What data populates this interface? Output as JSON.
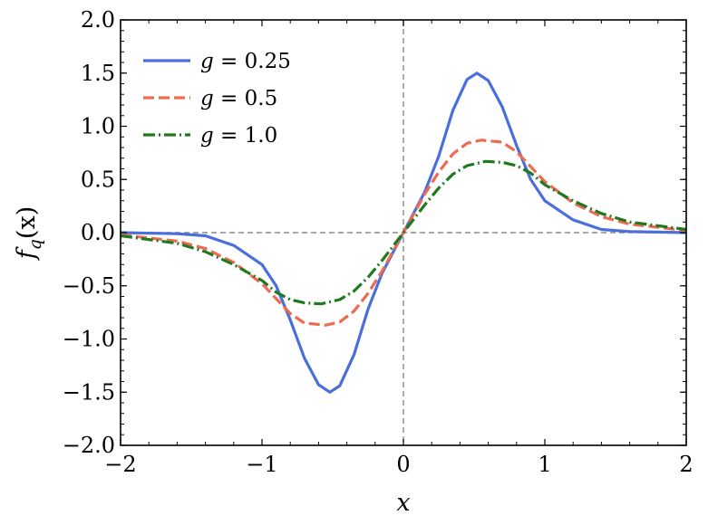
{
  "chart_data": {
    "type": "line",
    "title": "",
    "xlabel": "x",
    "ylabel": "f_q(x)",
    "ylabel_parts": {
      "base": "f",
      "sub": "q",
      "arg": "(x)"
    },
    "xlim": [
      -2,
      2
    ],
    "ylim": [
      -2,
      2
    ],
    "xticks": [
      -2,
      -1,
      0,
      1,
      2
    ],
    "xtick_labels": [
      "−2",
      "−1",
      "0",
      "1",
      "2"
    ],
    "yticks": [
      -2,
      -1.5,
      -1,
      -0.5,
      0,
      0.5,
      1,
      1.5,
      2
    ],
    "ytick_labels": [
      "−2.0",
      "−1.5",
      "−1.0",
      "−0.5",
      "0.0",
      "0.5",
      "1.0",
      "1.5",
      "2.0"
    ],
    "grid": false,
    "legend_position": "top-left",
    "reference_lines": {
      "x": 0,
      "y": 0,
      "style": "dashed",
      "color": "#888888"
    },
    "series": [
      {
        "name": "g = 0.25",
        "legend_var": "g",
        "legend_value": "0.25",
        "color": "#4a6fdc",
        "dash": "solid",
        "points": [
          [
            -2.0,
            0.0
          ],
          [
            -1.6,
            -0.01
          ],
          [
            -1.4,
            -0.03
          ],
          [
            -1.2,
            -0.12
          ],
          [
            -1.0,
            -0.3
          ],
          [
            -0.9,
            -0.5
          ],
          [
            -0.8,
            -0.82
          ],
          [
            -0.7,
            -1.18
          ],
          [
            -0.6,
            -1.43
          ],
          [
            -0.52,
            -1.5
          ],
          [
            -0.45,
            -1.44
          ],
          [
            -0.35,
            -1.15
          ],
          [
            -0.25,
            -0.72
          ],
          [
            -0.15,
            -0.38
          ],
          [
            0.0,
            0.0
          ],
          [
            0.15,
            0.38
          ],
          [
            0.25,
            0.72
          ],
          [
            0.35,
            1.15
          ],
          [
            0.45,
            1.44
          ],
          [
            0.52,
            1.5
          ],
          [
            0.6,
            1.43
          ],
          [
            0.7,
            1.18
          ],
          [
            0.8,
            0.82
          ],
          [
            0.9,
            0.5
          ],
          [
            1.0,
            0.3
          ],
          [
            1.2,
            0.12
          ],
          [
            1.4,
            0.03
          ],
          [
            1.6,
            0.01
          ],
          [
            2.0,
            0.0
          ]
        ]
      },
      {
        "name": "g = 0.5",
        "legend_var": "g",
        "legend_value": "0.5",
        "color": "#ef6a52",
        "dash": "dashed",
        "points": [
          [
            -2.0,
            -0.02
          ],
          [
            -1.6,
            -0.08
          ],
          [
            -1.4,
            -0.15
          ],
          [
            -1.2,
            -0.28
          ],
          [
            -1.0,
            -0.48
          ],
          [
            -0.9,
            -0.62
          ],
          [
            -0.8,
            -0.76
          ],
          [
            -0.7,
            -0.85
          ],
          [
            -0.55,
            -0.87
          ],
          [
            -0.45,
            -0.84
          ],
          [
            -0.35,
            -0.74
          ],
          [
            -0.25,
            -0.57
          ],
          [
            -0.15,
            -0.36
          ],
          [
            0.0,
            0.0
          ],
          [
            0.15,
            0.36
          ],
          [
            0.25,
            0.57
          ],
          [
            0.35,
            0.74
          ],
          [
            0.45,
            0.84
          ],
          [
            0.55,
            0.87
          ],
          [
            0.7,
            0.85
          ],
          [
            0.8,
            0.76
          ],
          [
            0.9,
            0.62
          ],
          [
            1.0,
            0.48
          ],
          [
            1.2,
            0.28
          ],
          [
            1.4,
            0.15
          ],
          [
            1.6,
            0.08
          ],
          [
            2.0,
            0.02
          ]
        ]
      },
      {
        "name": "g = 1.0",
        "legend_var": "g",
        "legend_value": "1.0",
        "color": "#1f7a1f",
        "dash": "dashdot",
        "points": [
          [
            -2.0,
            -0.03
          ],
          [
            -1.6,
            -0.1
          ],
          [
            -1.4,
            -0.18
          ],
          [
            -1.2,
            -0.3
          ],
          [
            -1.0,
            -0.45
          ],
          [
            -0.9,
            -0.56
          ],
          [
            -0.8,
            -0.63
          ],
          [
            -0.7,
            -0.66
          ],
          [
            -0.58,
            -0.67
          ],
          [
            -0.45,
            -0.63
          ],
          [
            -0.35,
            -0.55
          ],
          [
            -0.25,
            -0.42
          ],
          [
            -0.15,
            -0.26
          ],
          [
            0.0,
            0.0
          ],
          [
            0.15,
            0.26
          ],
          [
            0.25,
            0.42
          ],
          [
            0.35,
            0.55
          ],
          [
            0.45,
            0.63
          ],
          [
            0.58,
            0.67
          ],
          [
            0.7,
            0.66
          ],
          [
            0.8,
            0.63
          ],
          [
            0.9,
            0.56
          ],
          [
            1.0,
            0.45
          ],
          [
            1.2,
            0.3
          ],
          [
            1.4,
            0.18
          ],
          [
            1.6,
            0.1
          ],
          [
            2.0,
            0.03
          ]
        ]
      }
    ]
  }
}
